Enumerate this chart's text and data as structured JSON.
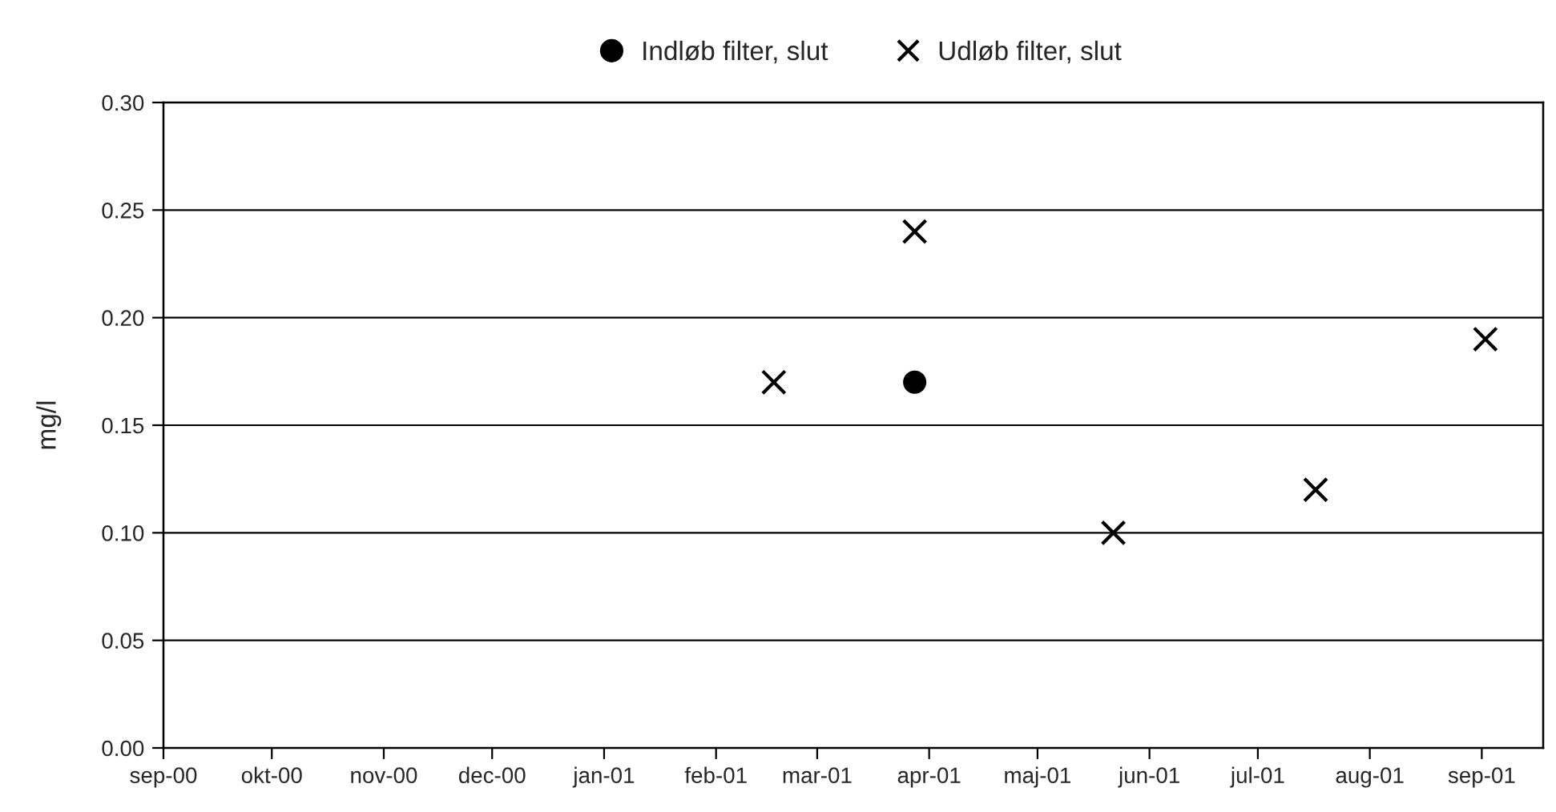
{
  "chart_data": {
    "type": "scatter",
    "ylabel": "mg/l",
    "series": [
      {
        "name": "Indløb filter, slut",
        "color": "#000000",
        "marker": "circle",
        "x": [
          "2001-03-28"
        ],
        "values": [
          0.17
        ]
      },
      {
        "name": "Udløb filter, slut",
        "color": "#000000",
        "marker": "cross",
        "x": [
          "2001-02-17",
          "2001-03-28",
          "2001-05-22",
          "2001-07-17",
          "2001-09-02"
        ],
        "values": [
          0.17,
          0.24,
          0.1,
          0.12,
          0.19
        ]
      }
    ],
    "xlim": [
      "2000-09-01",
      "2001-09-18"
    ],
    "xticks": [
      {
        "value": "2000-09-01",
        "label": "sep-00"
      },
      {
        "value": "2000-10-01",
        "label": "okt-00"
      },
      {
        "value": "2000-11-01",
        "label": "nov-00"
      },
      {
        "value": "2000-12-01",
        "label": "dec-00"
      },
      {
        "value": "2001-01-01",
        "label": "jan-01"
      },
      {
        "value": "2001-02-01",
        "label": "feb-01"
      },
      {
        "value": "2001-03-01",
        "label": "mar-01"
      },
      {
        "value": "2001-04-01",
        "label": "apr-01"
      },
      {
        "value": "2001-05-01",
        "label": "maj-01"
      },
      {
        "value": "2001-06-01",
        "label": "jun-01"
      },
      {
        "value": "2001-07-01",
        "label": "jul-01"
      },
      {
        "value": "2001-08-01",
        "label": "aug-01"
      },
      {
        "value": "2001-09-01",
        "label": "sep-01"
      }
    ],
    "ylim": [
      0,
      0.3
    ],
    "yticks": [
      {
        "value": 0,
        "label": "0.00"
      },
      {
        "value": 0.05,
        "label": "0.05"
      },
      {
        "value": 0.1,
        "label": "0.10"
      },
      {
        "value": 0.15,
        "label": "0.15"
      },
      {
        "value": 0.2,
        "label": "0.20"
      },
      {
        "value": 0.25,
        "label": "0.25"
      },
      {
        "value": 0.3,
        "label": "0.30"
      }
    ],
    "grid": "y",
    "legend": "top"
  }
}
